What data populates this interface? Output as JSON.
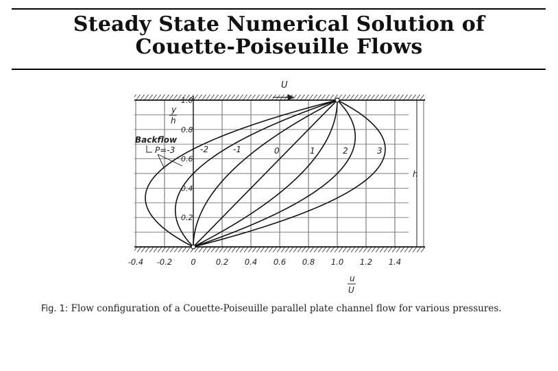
{
  "title": {
    "line1": "Steady State Numerical Solution of",
    "line2": "Couette-Poiseuille Flows"
  },
  "figure": {
    "top_velocity_label": "U",
    "y_axis_label_num": "y",
    "y_axis_label_den": "h",
    "x_axis_label_num": "u",
    "x_axis_label_den": "U",
    "height_label": "h",
    "backflow_label": "Backflow",
    "x_ticks": [
      "-0.4",
      "-0.2",
      "0",
      "0.2",
      "0.4",
      "0.6",
      "0.8",
      "1.0",
      "1.2",
      "1.4"
    ],
    "y_ticks": [
      "1.0",
      "0.8",
      "0.6",
      "0.4",
      "0.2"
    ],
    "curve_labels": [
      "P=-3",
      "-2",
      "-1",
      "0",
      "1",
      "2",
      "3"
    ]
  },
  "chart_data": {
    "type": "line",
    "x_ticks": [
      -0.4,
      -0.2,
      0,
      0.2,
      0.4,
      0.6,
      0.8,
      1.0,
      1.2,
      1.4
    ],
    "y_ticks": [
      0.2,
      0.4,
      0.6,
      0.8,
      1.0
    ],
    "series": [
      {
        "name": "P=-3",
        "P": -3
      },
      {
        "name": "-2",
        "P": -2
      },
      {
        "name": "-1",
        "P": -1
      },
      {
        "name": "0",
        "P": 0
      },
      {
        "name": "1",
        "P": 1
      },
      {
        "name": "2",
        "P": 2
      },
      {
        "name": "3",
        "P": 3
      }
    ]
  },
  "caption": {
    "label": "Fig. 1:",
    "text": "Flow configuration of a Couette-Poiseuille parallel plate channel flow for various pressures."
  }
}
